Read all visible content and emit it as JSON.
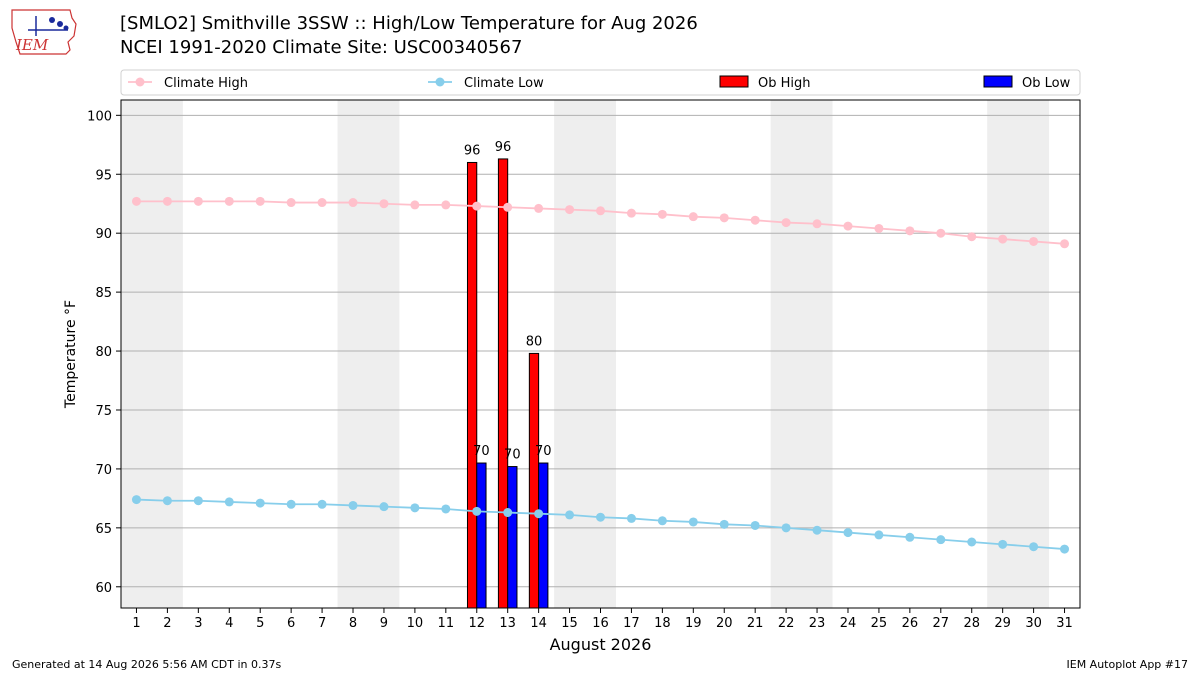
{
  "header": {
    "title": "[SMLO2] Smithville 3SSW :: High/Low Temperature for Aug 2026",
    "subtitle": "NCEI 1991-2020 Climate Site: USC00340567",
    "logo_text": "IEM"
  },
  "footer": {
    "generated": "Generated at 14 Aug 2026 5:56 AM CDT in 0.37s",
    "app": "IEM Autoplot App #17"
  },
  "colors": {
    "climate_high": "#ffc0cb",
    "climate_low": "#87ceeb",
    "ob_high": "#ff0000",
    "ob_low": "#0000ff",
    "weekend_band": "#eeeeee",
    "grid": "#b0b0b0"
  },
  "chart_data": {
    "type": "bar",
    "xlabel": "August 2026",
    "ylabel": "Temperature °F",
    "xlim": [
      0.5,
      31.5
    ],
    "ylim": [
      58.2,
      101.3
    ],
    "x": [
      1,
      2,
      3,
      4,
      5,
      6,
      7,
      8,
      9,
      10,
      11,
      12,
      13,
      14,
      15,
      16,
      17,
      18,
      19,
      20,
      21,
      22,
      23,
      24,
      25,
      26,
      27,
      28,
      29,
      30,
      31
    ],
    "yticks": [
      60,
      65,
      70,
      75,
      80,
      85,
      90,
      95,
      100
    ],
    "grid": true,
    "legend": {
      "placement": "top",
      "entries": [
        "Climate High",
        "Climate Low",
        "Ob High",
        "Ob Low"
      ]
    },
    "weekend_bands": [
      [
        0.5,
        2.5
      ],
      [
        7.5,
        9.5
      ],
      [
        14.5,
        16.5
      ],
      [
        21.5,
        23.5
      ],
      [
        28.5,
        30.5
      ]
    ],
    "series": [
      {
        "name": "Climate High",
        "kind": "line",
        "values": [
          92.7,
          92.7,
          92.7,
          92.7,
          92.7,
          92.6,
          92.6,
          92.6,
          92.5,
          92.4,
          92.4,
          92.3,
          92.2,
          92.1,
          92.0,
          91.9,
          91.7,
          91.6,
          91.4,
          91.3,
          91.1,
          90.9,
          90.8,
          90.6,
          90.4,
          90.2,
          90.0,
          89.7,
          89.5,
          89.3,
          89.1
        ]
      },
      {
        "name": "Climate Low",
        "kind": "line",
        "values": [
          67.4,
          67.3,
          67.3,
          67.2,
          67.1,
          67.0,
          67.0,
          66.9,
          66.8,
          66.7,
          66.6,
          66.4,
          66.3,
          66.2,
          66.1,
          65.9,
          65.8,
          65.6,
          65.5,
          65.3,
          65.2,
          65.0,
          64.8,
          64.6,
          64.4,
          64.2,
          64.0,
          63.8,
          63.6,
          63.4,
          63.2
        ]
      },
      {
        "name": "Ob High",
        "kind": "bar",
        "x": [
          12,
          13,
          14
        ],
        "values": [
          96,
          96.3,
          79.8
        ],
        "labels": [
          "96",
          "96",
          "80"
        ]
      },
      {
        "name": "Ob Low",
        "kind": "bar",
        "x": [
          12,
          13,
          14
        ],
        "values": [
          70.5,
          70.2,
          70.5
        ],
        "labels": [
          "70",
          "70",
          "70"
        ]
      }
    ]
  }
}
